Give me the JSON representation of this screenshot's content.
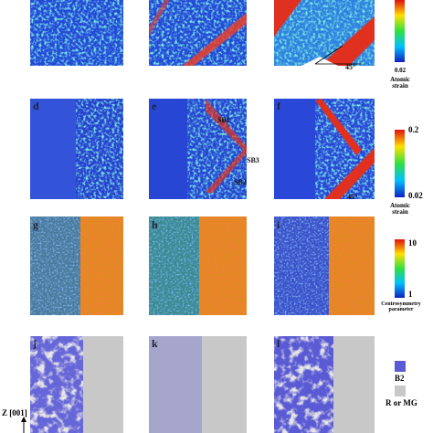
{
  "rows": [
    {
      "colorbar": {
        "bottom": "0.02",
        "title": "Atomic strain"
      },
      "annotations": [
        "45°"
      ]
    },
    {
      "panels": [
        "d",
        "e",
        "f"
      ],
      "colorbar": {
        "top": "0.2",
        "bottom": "0.02",
        "title": "Atomic strain"
      },
      "annotations": [
        "SB1",
        "SB3",
        "SB2",
        "45°"
      ]
    },
    {
      "panels": [
        "g",
        "h",
        "i"
      ],
      "colorbar": {
        "top": "10",
        "bottom": "1",
        "title": "Centrosymmetry parameter"
      }
    },
    {
      "panels": [
        "j",
        "k",
        "l"
      ],
      "legend": [
        "B2",
        "R or MG"
      ]
    }
  ],
  "axis_label": "Z [001]"
}
